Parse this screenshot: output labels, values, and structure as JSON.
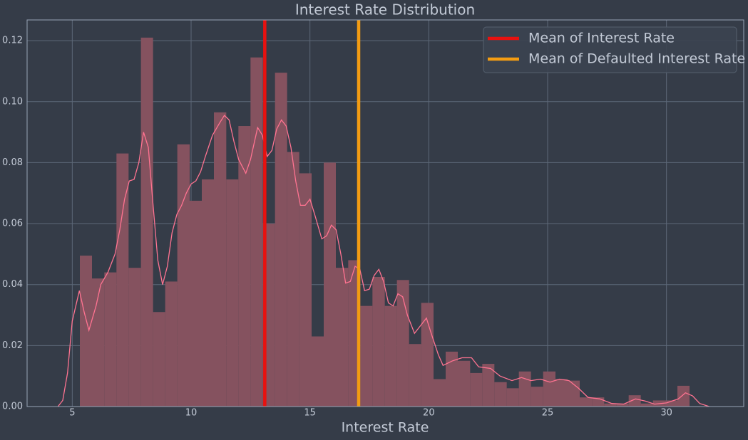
{
  "chart_data": {
    "type": "histogram",
    "title": "Interest Rate Distribution",
    "xlabel": "Interest Rate",
    "bins": [
      5.32,
      5.83,
      6.35,
      6.86,
      7.37,
      7.89,
      8.4,
      8.91,
      9.42,
      9.94,
      10.45,
      10.96,
      11.48,
      11.99,
      12.5,
      13.02,
      13.53,
      14.04,
      14.55,
      15.07,
      15.58,
      16.09,
      16.61,
      17.12,
      17.63,
      18.15,
      18.66,
      19.17,
      19.68,
      20.2,
      20.71,
      21.22,
      21.74,
      22.25,
      22.76,
      23.28,
      23.79,
      24.3,
      24.81,
      25.33,
      25.84,
      26.35,
      26.87,
      27.38,
      27.89,
      28.41,
      28.92,
      29.43,
      29.94,
      30.46,
      30.97
    ],
    "values": [
      0.0495,
      0.042,
      0.044,
      0.083,
      0.0455,
      0.121,
      0.031,
      0.041,
      0.086,
      0.0675,
      0.0745,
      0.0965,
      0.0745,
      0.092,
      0.1145,
      0.06,
      0.1095,
      0.0835,
      0.0765,
      0.023,
      0.08,
      0.0455,
      0.048,
      0.033,
      0.0425,
      0.033,
      0.0415,
      0.0205,
      0.034,
      0.009,
      0.018,
      0.015,
      0.011,
      0.014,
      0.008,
      0.006,
      0.0115,
      0.0065,
      0.0115,
      0.009,
      0.0085,
      0.003,
      0.003,
      0.001,
      0.001,
      0.0037,
      0.001,
      0.002,
      0.002,
      0.0068
    ],
    "color": "#85525f",
    "kde": {
      "color": "#ff7391",
      "x": [
        4.4,
        4.6,
        4.8,
        5.0,
        5.3,
        5.5,
        5.7,
        6.0,
        6.2,
        6.5,
        6.8,
        7.0,
        7.2,
        7.4,
        7.6,
        7.8,
        8.0,
        8.2,
        8.4,
        8.6,
        8.8,
        9.0,
        9.2,
        9.4,
        9.6,
        9.8,
        10.0,
        10.2,
        10.4,
        10.6,
        10.9,
        11.2,
        11.4,
        11.6,
        11.8,
        12.0,
        12.3,
        12.5,
        12.8,
        13.0,
        13.2,
        13.4,
        13.6,
        13.8,
        14.0,
        14.2,
        14.4,
        14.6,
        14.8,
        15.0,
        15.2,
        15.5,
        15.7,
        15.9,
        16.1,
        16.3,
        16.5,
        16.7,
        16.9,
        17.1,
        17.3,
        17.5,
        17.7,
        17.9,
        18.1,
        18.3,
        18.5,
        18.7,
        18.9,
        19.1,
        19.4,
        19.7,
        19.9,
        20.1,
        20.4,
        20.6,
        21.0,
        21.4,
        21.8,
        22.1,
        22.6,
        23.0,
        23.5,
        23.9,
        24.3,
        24.7,
        25.1,
        25.5,
        25.9,
        26.3,
        26.7,
        27.2,
        27.7,
        28.2,
        28.7,
        29.1,
        29.5,
        30.0,
        30.5,
        30.8,
        31.1,
        31.4,
        31.8
      ],
      "values": [
        0.0,
        0.002,
        0.011,
        0.028,
        0.038,
        0.031,
        0.025,
        0.033,
        0.04,
        0.044,
        0.05,
        0.058,
        0.068,
        0.074,
        0.0745,
        0.08,
        0.09,
        0.085,
        0.066,
        0.048,
        0.04,
        0.046,
        0.057,
        0.063,
        0.066,
        0.07,
        0.073,
        0.074,
        0.077,
        0.082,
        0.089,
        0.093,
        0.0955,
        0.094,
        0.087,
        0.081,
        0.0765,
        0.081,
        0.0915,
        0.089,
        0.082,
        0.084,
        0.091,
        0.094,
        0.092,
        0.085,
        0.074,
        0.066,
        0.066,
        0.068,
        0.063,
        0.055,
        0.056,
        0.0595,
        0.058,
        0.05,
        0.0405,
        0.041,
        0.046,
        0.045,
        0.038,
        0.0385,
        0.043,
        0.045,
        0.041,
        0.034,
        0.033,
        0.037,
        0.036,
        0.03,
        0.024,
        0.027,
        0.029,
        0.024,
        0.017,
        0.0135,
        0.015,
        0.016,
        0.016,
        0.013,
        0.0125,
        0.01,
        0.0085,
        0.0095,
        0.0085,
        0.009,
        0.008,
        0.009,
        0.0085,
        0.006,
        0.003,
        0.0025,
        0.001,
        0.0008,
        0.0025,
        0.0018,
        0.0008,
        0.0012,
        0.0025,
        0.0045,
        0.0035,
        0.001,
        0.0
      ]
    },
    "vlines": [
      {
        "name": "Mean of Interest Rate",
        "color": "#e8110f",
        "x": 13.1
      },
      {
        "name": "Mean of Defaulted Interest Rate",
        "color": "#f39c12",
        "x": 17.05
      }
    ],
    "xlim": [
      3.1,
      33.25
    ],
    "ylim": [
      0,
      0.1268
    ],
    "xticks": [
      5,
      10,
      15,
      20,
      25,
      30
    ],
    "yticks": [
      {
        "value": 0,
        "label": "0.00"
      },
      0.02,
      0.04,
      0.06,
      0.08,
      {
        "value": 0.1,
        "label": "0.10"
      },
      0.12
    ],
    "grid": true,
    "legend": "upper right"
  }
}
